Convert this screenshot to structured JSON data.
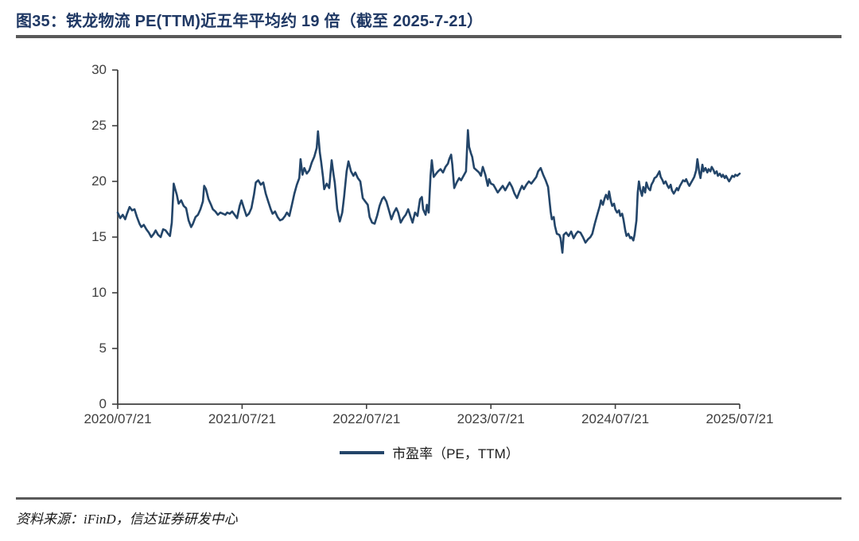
{
  "figure": {
    "title": "图35：铁龙物流 PE(TTM)近五年平均约 19 倍（截至 2025-7-21）",
    "source": "资料来源：iFinD，信达证券研发中心"
  },
  "legend": {
    "label": "市盈率（PE，TTM）"
  },
  "colors": {
    "title": "#1f3864",
    "line": "#234569",
    "axis": "#404040",
    "tick_text": "#3f3f3f",
    "rule": "#595959"
  },
  "chart_data": {
    "type": "line",
    "title": "铁龙物流 PE(TTM) 近五年",
    "xlabel": "",
    "ylabel": "",
    "grid": false,
    "legend_position": "bottom",
    "ylim": [
      0,
      30
    ],
    "y_ticks": [
      0,
      5,
      10,
      15,
      20,
      25,
      30
    ],
    "x_ticks": [
      "2020/07/21",
      "2021/07/21",
      "2022/07/21",
      "2023/07/21",
      "2024/07/21",
      "2025/07/21"
    ],
    "x_range": [
      "2020/07/21",
      "2025/07/21"
    ],
    "series": [
      {
        "name": "市盈率（PE，TTM）",
        "points": [
          [
            0.0,
            17.2
          ],
          [
            0.004,
            16.7
          ],
          [
            0.008,
            17.0
          ],
          [
            0.012,
            16.6
          ],
          [
            0.015,
            17.1
          ],
          [
            0.019,
            17.7
          ],
          [
            0.023,
            17.4
          ],
          [
            0.027,
            17.5
          ],
          [
            0.031,
            16.8
          ],
          [
            0.035,
            16.2
          ],
          [
            0.038,
            15.9
          ],
          [
            0.042,
            16.1
          ],
          [
            0.046,
            15.7
          ],
          [
            0.05,
            15.4
          ],
          [
            0.054,
            15.0
          ],
          [
            0.058,
            15.3
          ],
          [
            0.061,
            15.6
          ],
          [
            0.065,
            15.2
          ],
          [
            0.069,
            15.0
          ],
          [
            0.073,
            15.7
          ],
          [
            0.077,
            15.6
          ],
          [
            0.081,
            15.3
          ],
          [
            0.084,
            15.1
          ],
          [
            0.087,
            16.3
          ],
          [
            0.09,
            19.8
          ],
          [
            0.092,
            19.4
          ],
          [
            0.095,
            18.8
          ],
          [
            0.098,
            18.0
          ],
          [
            0.102,
            18.3
          ],
          [
            0.106,
            17.8
          ],
          [
            0.11,
            17.6
          ],
          [
            0.114,
            16.5
          ],
          [
            0.118,
            15.9
          ],
          [
            0.121,
            16.2
          ],
          [
            0.125,
            16.8
          ],
          [
            0.129,
            17.0
          ],
          [
            0.133,
            17.5
          ],
          [
            0.137,
            18.2
          ],
          [
            0.139,
            19.6
          ],
          [
            0.142,
            19.3
          ],
          [
            0.146,
            18.4
          ],
          [
            0.15,
            17.9
          ],
          [
            0.153,
            17.5
          ],
          [
            0.157,
            17.3
          ],
          [
            0.161,
            17.0
          ],
          [
            0.165,
            17.2
          ],
          [
            0.169,
            17.1
          ],
          [
            0.173,
            17.0
          ],
          [
            0.176,
            17.2
          ],
          [
            0.18,
            17.1
          ],
          [
            0.184,
            17.3
          ],
          [
            0.188,
            17.0
          ],
          [
            0.192,
            16.7
          ],
          [
            0.196,
            17.8
          ],
          [
            0.199,
            18.3
          ],
          [
            0.203,
            17.6
          ],
          [
            0.207,
            16.9
          ],
          [
            0.211,
            17.1
          ],
          [
            0.215,
            17.6
          ],
          [
            0.219,
            18.8
          ],
          [
            0.222,
            19.9
          ],
          [
            0.226,
            20.1
          ],
          [
            0.23,
            19.7
          ],
          [
            0.234,
            19.9
          ],
          [
            0.238,
            18.9
          ],
          [
            0.242,
            18.2
          ],
          [
            0.246,
            17.5
          ],
          [
            0.249,
            17.1
          ],
          [
            0.253,
            17.3
          ],
          [
            0.257,
            16.8
          ],
          [
            0.261,
            16.5
          ],
          [
            0.265,
            16.6
          ],
          [
            0.269,
            16.9
          ],
          [
            0.272,
            17.2
          ],
          [
            0.276,
            16.9
          ],
          [
            0.28,
            17.9
          ],
          [
            0.284,
            18.9
          ],
          [
            0.288,
            19.7
          ],
          [
            0.292,
            20.3
          ],
          [
            0.294,
            22.0
          ],
          [
            0.297,
            20.6
          ],
          [
            0.3,
            21.2
          ],
          [
            0.304,
            20.7
          ],
          [
            0.308,
            21.0
          ],
          [
            0.312,
            21.7
          ],
          [
            0.316,
            22.2
          ],
          [
            0.32,
            23.0
          ],
          [
            0.322,
            24.5
          ],
          [
            0.325,
            22.6
          ],
          [
            0.327,
            21.8
          ],
          [
            0.33,
            20.4
          ],
          [
            0.332,
            19.3
          ],
          [
            0.336,
            19.8
          ],
          [
            0.34,
            19.4
          ],
          [
            0.344,
            21.9
          ],
          [
            0.347,
            20.6
          ],
          [
            0.349,
            19.9
          ],
          [
            0.353,
            17.5
          ],
          [
            0.357,
            16.4
          ],
          [
            0.361,
            17.2
          ],
          [
            0.364,
            18.6
          ],
          [
            0.368,
            20.9
          ],
          [
            0.371,
            21.8
          ],
          [
            0.375,
            20.9
          ],
          [
            0.379,
            20.5
          ],
          [
            0.382,
            20.8
          ],
          [
            0.386,
            20.3
          ],
          [
            0.39,
            20.0
          ],
          [
            0.394,
            18.5
          ],
          [
            0.398,
            18.2
          ],
          [
            0.402,
            17.9
          ],
          [
            0.405,
            16.8
          ],
          [
            0.409,
            16.3
          ],
          [
            0.413,
            16.2
          ],
          [
            0.417,
            16.9
          ],
          [
            0.421,
            17.8
          ],
          [
            0.425,
            18.4
          ],
          [
            0.428,
            18.6
          ],
          [
            0.432,
            18.2
          ],
          [
            0.436,
            17.4
          ],
          [
            0.44,
            16.6
          ],
          [
            0.444,
            17.2
          ],
          [
            0.448,
            17.6
          ],
          [
            0.451,
            17.2
          ],
          [
            0.455,
            16.3
          ],
          [
            0.459,
            16.7
          ],
          [
            0.463,
            17.0
          ],
          [
            0.467,
            17.5
          ],
          [
            0.471,
            16.8
          ],
          [
            0.474,
            16.3
          ],
          [
            0.478,
            17.2
          ],
          [
            0.482,
            16.9
          ],
          [
            0.486,
            18.4
          ],
          [
            0.489,
            18.6
          ],
          [
            0.491,
            17.5
          ],
          [
            0.495,
            17.0
          ],
          [
            0.497,
            17.9
          ],
          [
            0.5,
            17.2
          ],
          [
            0.503,
            20.5
          ],
          [
            0.505,
            21.9
          ],
          [
            0.508,
            20.4
          ],
          [
            0.512,
            20.7
          ],
          [
            0.515,
            20.9
          ],
          [
            0.519,
            21.1
          ],
          [
            0.523,
            20.8
          ],
          [
            0.527,
            21.3
          ],
          [
            0.531,
            21.6
          ],
          [
            0.533,
            22.0
          ],
          [
            0.536,
            22.4
          ],
          [
            0.538,
            21.5
          ],
          [
            0.541,
            19.4
          ],
          [
            0.545,
            19.9
          ],
          [
            0.549,
            20.3
          ],
          [
            0.552,
            20.1
          ],
          [
            0.556,
            20.5
          ],
          [
            0.56,
            20.9
          ],
          [
            0.563,
            24.6
          ],
          [
            0.565,
            23.1
          ],
          [
            0.568,
            22.5
          ],
          [
            0.57,
            22.2
          ],
          [
            0.573,
            21.2
          ],
          [
            0.577,
            21.0
          ],
          [
            0.581,
            20.8
          ],
          [
            0.584,
            20.5
          ],
          [
            0.587,
            21.3
          ],
          [
            0.591,
            20.6
          ],
          [
            0.595,
            19.6
          ],
          [
            0.597,
            20.2
          ],
          [
            0.6,
            19.8
          ],
          [
            0.604,
            19.7
          ],
          [
            0.607,
            19.4
          ],
          [
            0.611,
            19.0
          ],
          [
            0.615,
            19.3
          ],
          [
            0.619,
            19.6
          ],
          [
            0.623,
            19.2
          ],
          [
            0.627,
            19.6
          ],
          [
            0.63,
            19.9
          ],
          [
            0.634,
            19.5
          ],
          [
            0.638,
            18.9
          ],
          [
            0.642,
            18.5
          ],
          [
            0.646,
            19.1
          ],
          [
            0.65,
            19.6
          ],
          [
            0.653,
            19.3
          ],
          [
            0.657,
            19.7
          ],
          [
            0.661,
            20.0
          ],
          [
            0.665,
            19.8
          ],
          [
            0.669,
            20.1
          ],
          [
            0.673,
            20.4
          ],
          [
            0.676,
            20.9
          ],
          [
            0.68,
            21.2
          ],
          [
            0.684,
            20.6
          ],
          [
            0.688,
            20.1
          ],
          [
            0.692,
            19.5
          ],
          [
            0.696,
            17.3
          ],
          [
            0.698,
            16.6
          ],
          [
            0.701,
            16.8
          ],
          [
            0.703,
            16.0
          ],
          [
            0.706,
            15.3
          ],
          [
            0.71,
            15.2
          ],
          [
            0.712,
            14.9
          ],
          [
            0.715,
            13.6
          ],
          [
            0.717,
            15.2
          ],
          [
            0.721,
            15.4
          ],
          [
            0.725,
            15.1
          ],
          [
            0.729,
            15.5
          ],
          [
            0.733,
            14.9
          ],
          [
            0.737,
            15.3
          ],
          [
            0.74,
            15.5
          ],
          [
            0.744,
            15.4
          ],
          [
            0.748,
            15.0
          ],
          [
            0.752,
            14.5
          ],
          [
            0.756,
            14.8
          ],
          [
            0.76,
            15.0
          ],
          [
            0.763,
            15.3
          ],
          [
            0.767,
            16.2
          ],
          [
            0.771,
            17.0
          ],
          [
            0.775,
            17.8
          ],
          [
            0.777,
            18.3
          ],
          [
            0.78,
            17.9
          ],
          [
            0.783,
            18.5
          ],
          [
            0.785,
            18.8
          ],
          [
            0.788,
            18.4
          ],
          [
            0.79,
            19.1
          ],
          [
            0.793,
            18.2
          ],
          [
            0.795,
            17.8
          ],
          [
            0.798,
            18.0
          ],
          [
            0.8,
            17.5
          ],
          [
            0.803,
            17.2
          ],
          [
            0.806,
            17.4
          ],
          [
            0.808,
            16.9
          ],
          [
            0.811,
            17.1
          ],
          [
            0.813,
            16.6
          ],
          [
            0.816,
            15.6
          ],
          [
            0.818,
            15.1
          ],
          [
            0.821,
            15.3
          ],
          [
            0.824,
            14.9
          ],
          [
            0.826,
            15.0
          ],
          [
            0.829,
            14.7
          ],
          [
            0.831,
            15.2
          ],
          [
            0.834,
            16.5
          ],
          [
            0.836,
            19.0
          ],
          [
            0.838,
            20.0
          ],
          [
            0.84,
            19.3
          ],
          [
            0.843,
            18.7
          ],
          [
            0.845,
            19.5
          ],
          [
            0.848,
            19.0
          ],
          [
            0.85,
            19.9
          ],
          [
            0.853,
            19.4
          ],
          [
            0.856,
            19.2
          ],
          [
            0.858,
            19.7
          ],
          [
            0.861,
            20.0
          ],
          [
            0.863,
            20.3
          ],
          [
            0.866,
            20.4
          ],
          [
            0.868,
            20.6
          ],
          [
            0.871,
            20.9
          ],
          [
            0.873,
            20.4
          ],
          [
            0.876,
            20.1
          ],
          [
            0.878,
            19.8
          ],
          [
            0.881,
            20.0
          ],
          [
            0.884,
            19.6
          ],
          [
            0.886,
            19.4
          ],
          [
            0.889,
            19.7
          ],
          [
            0.891,
            19.2
          ],
          [
            0.894,
            18.9
          ],
          [
            0.896,
            19.1
          ],
          [
            0.899,
            19.4
          ],
          [
            0.901,
            19.2
          ],
          [
            0.904,
            19.6
          ],
          [
            0.907,
            19.9
          ],
          [
            0.909,
            20.1
          ],
          [
            0.912,
            20.0
          ],
          [
            0.914,
            20.2
          ],
          [
            0.917,
            19.8
          ],
          [
            0.919,
            19.6
          ],
          [
            0.922,
            19.9
          ],
          [
            0.924,
            20.1
          ],
          [
            0.927,
            20.4
          ],
          [
            0.93,
            21.0
          ],
          [
            0.932,
            22.0
          ],
          [
            0.935,
            20.8
          ],
          [
            0.937,
            20.3
          ],
          [
            0.94,
            21.5
          ],
          [
            0.942,
            20.9
          ],
          [
            0.945,
            21.2
          ],
          [
            0.948,
            20.8
          ],
          [
            0.95,
            21.1
          ],
          [
            0.953,
            20.9
          ],
          [
            0.955,
            21.3
          ],
          [
            0.958,
            21.0
          ],
          [
            0.96,
            20.7
          ],
          [
            0.963,
            20.9
          ],
          [
            0.965,
            20.5
          ],
          [
            0.968,
            20.7
          ],
          [
            0.971,
            20.4
          ],
          [
            0.973,
            20.6
          ],
          [
            0.976,
            20.3
          ],
          [
            0.978,
            20.5
          ],
          [
            0.981,
            20.2
          ],
          [
            0.983,
            20.0
          ],
          [
            0.986,
            20.3
          ],
          [
            0.988,
            20.5
          ],
          [
            0.991,
            20.4
          ],
          [
            0.993,
            20.6
          ],
          [
            0.996,
            20.5
          ],
          [
            0.998,
            20.6
          ],
          [
            1.0,
            20.7
          ]
        ]
      }
    ]
  }
}
